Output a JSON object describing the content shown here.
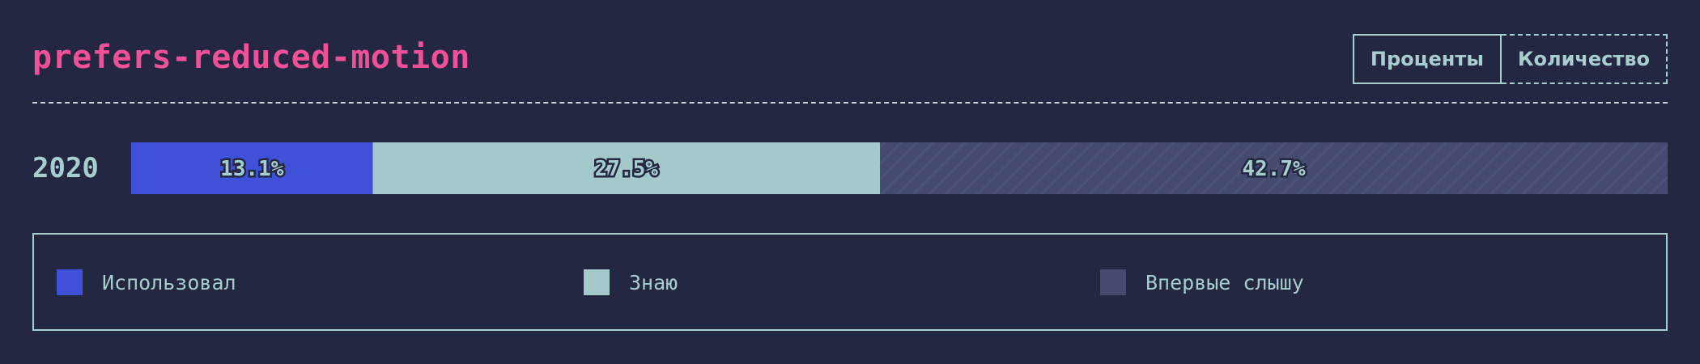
{
  "header": {
    "title": "prefers-reduced-motion",
    "toggle": {
      "percent_label": "Проценты",
      "count_label": "Количество",
      "active": "percent"
    }
  },
  "chart_data": {
    "type": "bar",
    "orientation": "horizontal",
    "stacked": true,
    "categories": [
      "2020"
    ],
    "series": [
      {
        "name": "Использовал",
        "values": [
          13.1
        ],
        "label": "13.1%",
        "color": "#3f51d8"
      },
      {
        "name": "Знаю",
        "values": [
          27.5
        ],
        "label": "27.5%",
        "color": "#a4c9cb"
      },
      {
        "name": "Впервые слышу",
        "values": [
          42.7
        ],
        "label": "42.7%",
        "color": "#454a6e"
      }
    ],
    "legend_position": "bottom",
    "grid": false
  },
  "legend": {
    "items": [
      {
        "label": "Использовал",
        "color": "#3f51d8"
      },
      {
        "label": "Знаю",
        "color": "#a4c9cb"
      },
      {
        "label": "Впервые слышу",
        "color": "#454a6e"
      }
    ]
  },
  "colors": {
    "background": "#232741",
    "title": "#f0509a",
    "text": "#a8cdd0"
  }
}
